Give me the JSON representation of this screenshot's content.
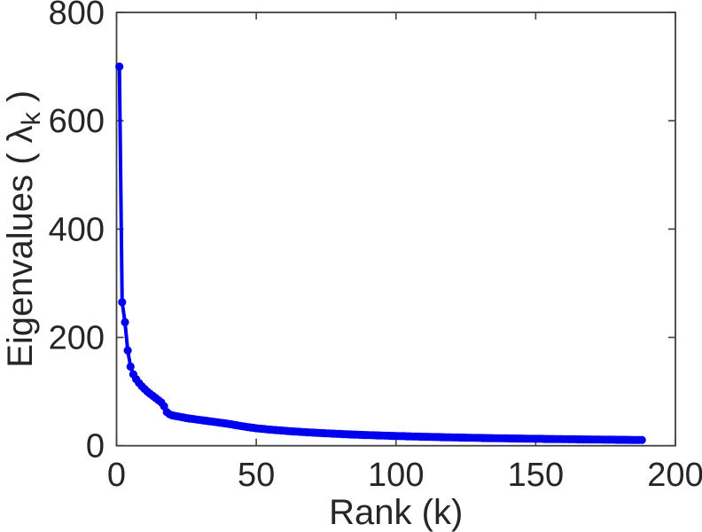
{
  "figure": {
    "background": "#ffffff"
  },
  "chart_data": {
    "type": "line",
    "title": "",
    "xlabel": "Rank (k)",
    "ylabel": {
      "prefix": "Eigenvalues ( ",
      "symbol": "λ",
      "subscript": "k",
      "suffix": " )"
    },
    "xlim": [
      0,
      200
    ],
    "ylim": [
      0,
      800
    ],
    "xticks": [
      0,
      50,
      100,
      150,
      200
    ],
    "yticks": [
      0,
      200,
      400,
      600,
      800
    ],
    "grid": false,
    "box": true,
    "marker": "circle",
    "line_color": "#0000EE",
    "axis_color": "#404040",
    "text_color": "#262626",
    "x_start": 1,
    "n_points": 188,
    "values": [
      700,
      265,
      228,
      176,
      146,
      132,
      123,
      116,
      110,
      105,
      100,
      96,
      92,
      88,
      84,
      80,
      73,
      62,
      58,
      56,
      55,
      54,
      53,
      52,
      51,
      50.3,
      49.6,
      48.9,
      48.2,
      47.5,
      46.8,
      46.1,
      45.4,
      44.7,
      44,
      43.3,
      42.6,
      41.9,
      41.2,
      40.5,
      39.6,
      38.7,
      37.8,
      36.9,
      36,
      35.2,
      34.4,
      33.7,
      33,
      32.3,
      31.7,
      31.2,
      30.7,
      30.2,
      29.8,
      29.3,
      28.9,
      28.5,
      28.1,
      27.7,
      27.3,
      26.9,
      26.6,
      26.2,
      25.9,
      25.6,
      25.2,
      24.9,
      24.6,
      24.3,
      24,
      23.7,
      23.4,
      23.2,
      22.9,
      22.7,
      22.4,
      22.2,
      21.9,
      21.7,
      21.5,
      21.2,
      21,
      20.8,
      20.6,
      20.4,
      20.2,
      20,
      19.8,
      19.7,
      19.5,
      19.3,
      19.1,
      19,
      18.8,
      18.6,
      18.5,
      18.3,
      18.2,
      18,
      17.9,
      17.7,
      17.6,
      17.4,
      17.3,
      17.1,
      17,
      16.9,
      16.7,
      16.6,
      16.5,
      16.3,
      16.2,
      16.1,
      16,
      15.9,
      15.7,
      15.6,
      15.5,
      15.4,
      15.3,
      15.2,
      15.1,
      15,
      14.9,
      14.8,
      14.7,
      14.6,
      14.5,
      14.4,
      14.3,
      14.2,
      14.1,
      14,
      13.9,
      13.9,
      13.8,
      13.7,
      13.6,
      13.6,
      13.5,
      13.4,
      13.3,
      13.2,
      13.2,
      13.1,
      13,
      12.9,
      12.9,
      12.8,
      12.7,
      12.7,
      12.6,
      12.5,
      12.5,
      12.4,
      12.3,
      12.3,
      12.2,
      12.1,
      12.1,
      12,
      11.9,
      11.9,
      11.8,
      11.8,
      11.7,
      11.6,
      11.6,
      11.5,
      11.5,
      11.4,
      11.4,
      11.3,
      11.2,
      11.2,
      11.1,
      11.1,
      11,
      11,
      10.9,
      10.9,
      10.8,
      10.8,
      10.7,
      10.7,
      10.6,
      10.6
    ]
  }
}
